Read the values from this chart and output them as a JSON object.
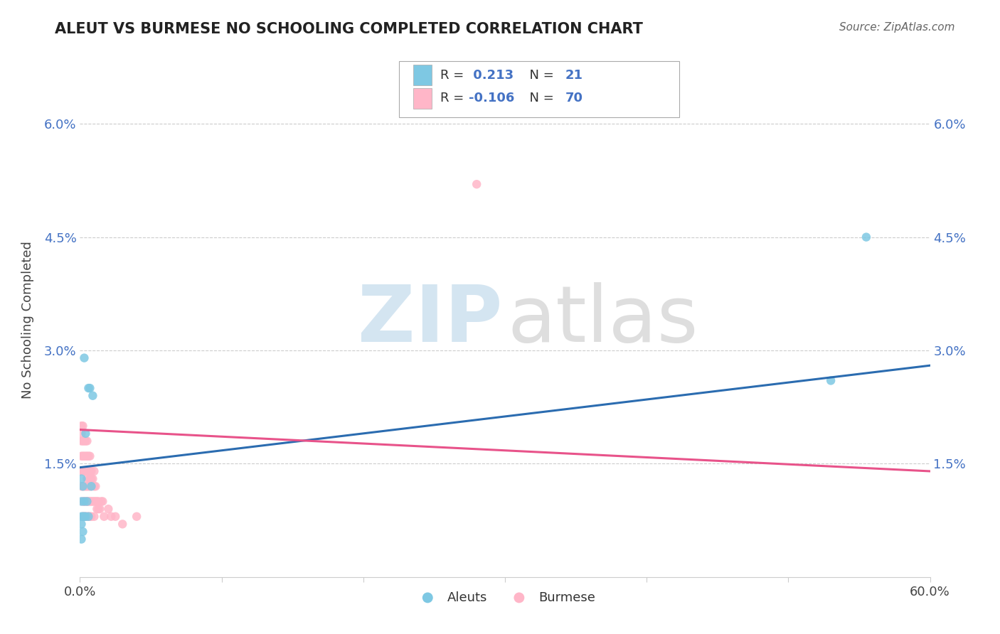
{
  "title": "ALEUT VS BURMESE NO SCHOOLING COMPLETED CORRELATION CHART",
  "source_text": "Source: ZipAtlas.com",
  "ylabel": "No Schooling Completed",
  "xlim": [
    0.0,
    0.6
  ],
  "ylim": [
    0.0,
    0.068
  ],
  "xtick_labels": [
    "0.0%",
    "",
    "",
    "",
    "",
    "",
    "60.0%"
  ],
  "xtick_values": [
    0.0,
    0.1,
    0.2,
    0.3,
    0.4,
    0.5,
    0.6
  ],
  "ytick_labels": [
    "1.5%",
    "3.0%",
    "4.5%",
    "6.0%"
  ],
  "ytick_values": [
    0.015,
    0.03,
    0.045,
    0.06
  ],
  "r_aleut": 0.213,
  "n_aleut": 21,
  "r_burmese": -0.106,
  "n_burmese": 70,
  "aleut_color": "#7ec8e3",
  "burmese_color": "#ffb6c8",
  "aleut_line_color": "#2b6cb0",
  "burmese_line_color": "#e8538a",
  "background_color": "#ffffff",
  "grid_color": "#cccccc",
  "aleut_x": [
    0.001,
    0.001,
    0.001,
    0.001,
    0.001,
    0.002,
    0.002,
    0.002,
    0.003,
    0.003,
    0.003,
    0.004,
    0.004,
    0.005,
    0.006,
    0.006,
    0.007,
    0.008,
    0.009,
    0.53,
    0.555
  ],
  "aleut_y": [
    0.005,
    0.007,
    0.008,
    0.01,
    0.013,
    0.006,
    0.008,
    0.012,
    0.008,
    0.01,
    0.029,
    0.008,
    0.019,
    0.01,
    0.008,
    0.025,
    0.025,
    0.012,
    0.024,
    0.026,
    0.045
  ],
  "burmese_x": [
    0.001,
    0.001,
    0.001,
    0.001,
    0.001,
    0.001,
    0.002,
    0.002,
    0.002,
    0.002,
    0.002,
    0.002,
    0.002,
    0.003,
    0.003,
    0.003,
    0.003,
    0.003,
    0.003,
    0.004,
    0.004,
    0.004,
    0.004,
    0.004,
    0.004,
    0.005,
    0.005,
    0.005,
    0.005,
    0.005,
    0.005,
    0.005,
    0.006,
    0.006,
    0.006,
    0.006,
    0.006,
    0.007,
    0.007,
    0.007,
    0.007,
    0.007,
    0.007,
    0.008,
    0.008,
    0.008,
    0.008,
    0.008,
    0.009,
    0.009,
    0.01,
    0.01,
    0.01,
    0.01,
    0.011,
    0.011,
    0.012,
    0.012,
    0.013,
    0.013,
    0.014,
    0.015,
    0.016,
    0.017,
    0.02,
    0.022,
    0.025,
    0.03,
    0.04,
    0.28
  ],
  "burmese_y": [
    0.019,
    0.02,
    0.018,
    0.016,
    0.014,
    0.012,
    0.02,
    0.018,
    0.016,
    0.014,
    0.012,
    0.01,
    0.008,
    0.018,
    0.016,
    0.014,
    0.012,
    0.01,
    0.008,
    0.018,
    0.016,
    0.014,
    0.012,
    0.01,
    0.008,
    0.018,
    0.016,
    0.014,
    0.013,
    0.012,
    0.01,
    0.008,
    0.016,
    0.014,
    0.012,
    0.01,
    0.008,
    0.016,
    0.014,
    0.013,
    0.012,
    0.01,
    0.008,
    0.014,
    0.013,
    0.012,
    0.01,
    0.008,
    0.013,
    0.01,
    0.014,
    0.012,
    0.01,
    0.008,
    0.012,
    0.01,
    0.01,
    0.009,
    0.01,
    0.009,
    0.009,
    0.01,
    0.01,
    0.008,
    0.009,
    0.008,
    0.008,
    0.007,
    0.008,
    0.052
  ],
  "aleut_trendline_x": [
    0.0,
    0.6
  ],
  "aleut_trendline_y": [
    0.0145,
    0.028
  ],
  "burmese_trendline_x": [
    0.0,
    0.6
  ],
  "burmese_trendline_y": [
    0.0195,
    0.014
  ]
}
